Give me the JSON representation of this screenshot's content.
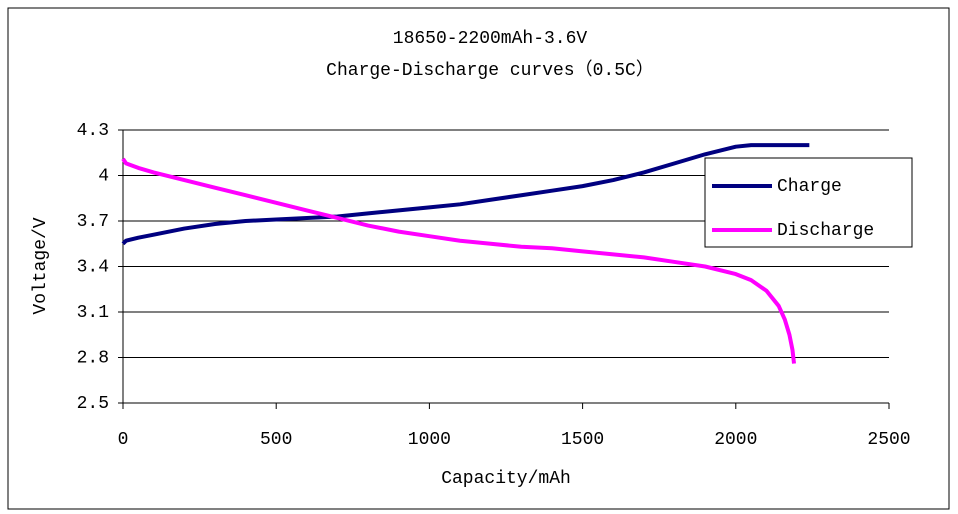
{
  "chart_data": {
    "type": "line",
    "title": "18650-2200mAh-3.6V",
    "subtitle": "Charge-Discharge curves（0.5C）",
    "x_label": "Capacity/mAh",
    "y_label": "Voltage/V",
    "xlim": [
      0,
      2500
    ],
    "xticks": [
      0,
      500,
      1000,
      1500,
      2000,
      2500
    ],
    "ylim": [
      2.5,
      4.3
    ],
    "yticks": [
      2.5,
      2.8,
      3.1,
      3.4,
      3.7,
      4,
      4.3
    ],
    "grid": true,
    "legend": "right",
    "series": [
      {
        "name": "Charge",
        "color": "#000080",
        "x": [
          0,
          10,
          50,
          100,
          200,
          300,
          400,
          500,
          600,
          700,
          800,
          900,
          1000,
          1100,
          1200,
          1300,
          1400,
          1500,
          1600,
          1700,
          1800,
          1900,
          2000,
          2050,
          2240
        ],
        "values": [
          3.55,
          3.57,
          3.59,
          3.61,
          3.65,
          3.68,
          3.7,
          3.71,
          3.72,
          3.73,
          3.75,
          3.77,
          3.79,
          3.81,
          3.84,
          3.87,
          3.9,
          3.93,
          3.97,
          4.02,
          4.08,
          4.14,
          4.19,
          4.2,
          4.2
        ]
      },
      {
        "name": "Discharge",
        "color": "#ff00ff",
        "x": [
          0,
          10,
          50,
          100,
          200,
          300,
          400,
          500,
          600,
          700,
          800,
          900,
          1000,
          1100,
          1200,
          1300,
          1400,
          1500,
          1600,
          1700,
          1800,
          1900,
          2000,
          2050,
          2100,
          2140,
          2160,
          2175,
          2185,
          2190
        ],
        "values": [
          4.11,
          4.08,
          4.05,
          4.02,
          3.97,
          3.92,
          3.87,
          3.82,
          3.77,
          3.72,
          3.67,
          3.63,
          3.6,
          3.57,
          3.55,
          3.53,
          3.52,
          3.5,
          3.48,
          3.46,
          3.43,
          3.4,
          3.35,
          3.31,
          3.24,
          3.14,
          3.05,
          2.95,
          2.85,
          2.76
        ]
      }
    ]
  }
}
